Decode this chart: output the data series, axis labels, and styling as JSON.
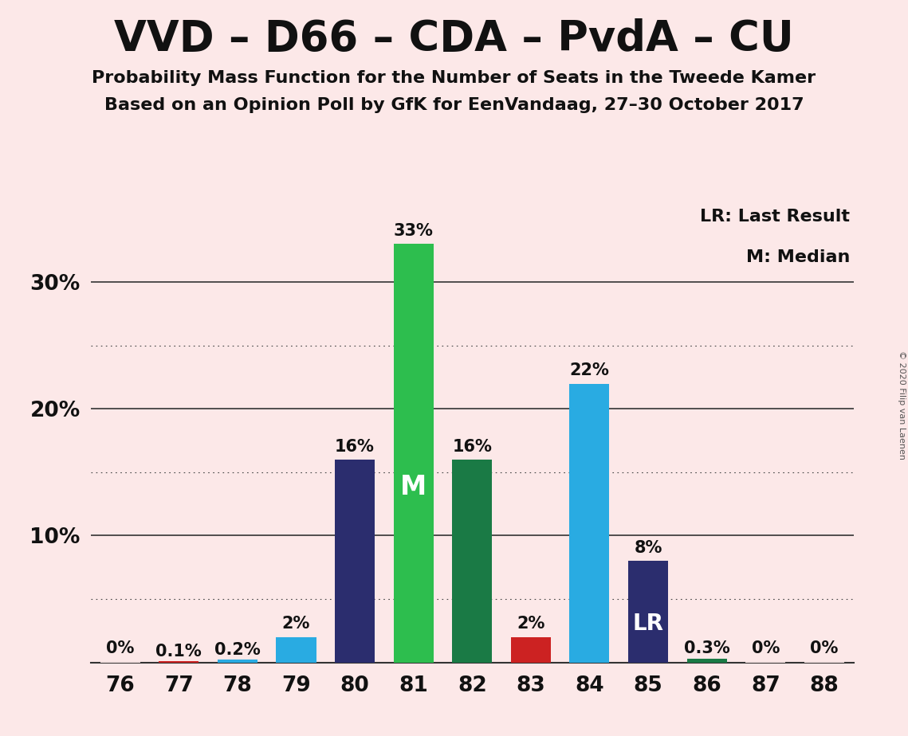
{
  "title": "VVD – D66 – CDA – PvdA – CU",
  "subtitle1": "Probability Mass Function for the Number of Seats in the Tweede Kamer",
  "subtitle2": "Based on an Opinion Poll by GfK for EenVandaag, 27–30 October 2017",
  "copyright": "© 2020 Filip van Laenen",
  "legend1": "LR: Last Result",
  "legend2": "M: Median",
  "seats": [
    76,
    77,
    78,
    79,
    80,
    81,
    82,
    83,
    84,
    85,
    86,
    87,
    88
  ],
  "values": [
    0.0,
    0.1,
    0.2,
    2.0,
    16.0,
    33.0,
    16.0,
    2.0,
    22.0,
    8.0,
    0.3,
    0.0,
    0.0
  ],
  "labels": [
    "0%",
    "0.1%",
    "0.2%",
    "2%",
    "16%",
    "33%",
    "16%",
    "2%",
    "22%",
    "8%",
    "0.3%",
    "0%",
    "0%"
  ],
  "bar_colors": [
    "#fce8e8",
    "#cc2222",
    "#29abe2",
    "#29abe2",
    "#2b2d6e",
    "#2dbe4e",
    "#1a7a45",
    "#cc2222",
    "#29abe2",
    "#2b2d6e",
    "#1a7a45",
    "#fce8e8",
    "#fce8e8"
  ],
  "median_bar_idx": 5,
  "lr_bar_idx": 9,
  "median_label": "M",
  "lr_label": "LR",
  "background_color": "#fce8e8",
  "ylim_max": 36,
  "major_gridlines": [
    10,
    20,
    30
  ],
  "minor_gridlines": [
    5,
    15,
    25
  ],
  "ytick_positions": [
    10,
    20,
    30
  ],
  "ytick_labels": [
    "10%",
    "20%",
    "30%"
  ],
  "title_fontsize": 38,
  "subtitle_fontsize": 16,
  "bar_label_fontsize": 15,
  "tick_fontsize": 19,
  "legend_fontsize": 16,
  "median_label_fontsize": 24,
  "lr_label_fontsize": 20
}
